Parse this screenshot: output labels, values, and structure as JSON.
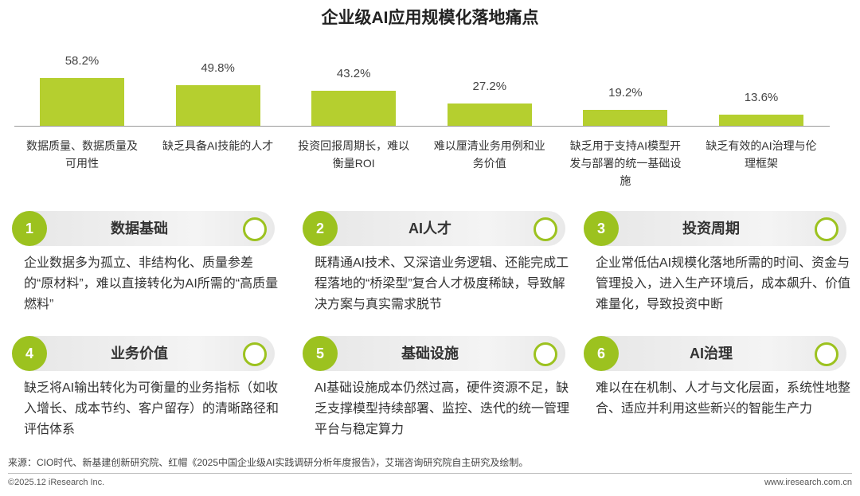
{
  "chart_data": {
    "type": "bar",
    "title": "企业级AI应用规模化落地痛点",
    "categories": [
      "数据质量、数据质量及可用性",
      "缺乏具备AI技能的人才",
      "投资回报周期长，难以衡量ROI",
      "难以厘清业务用例和业务价值",
      "缺乏用于支持AI模型开发与部署的统一基础设施",
      "缺乏有效的AI治理与伦理框架"
    ],
    "values": [
      58.2,
      49.8,
      43.2,
      27.2,
      19.2,
      13.6
    ],
    "value_labels": [
      "58.2%",
      "49.8%",
      "43.2%",
      "27.2%",
      "19.2%",
      "13.6%"
    ],
    "color": "#b5cf2f"
  },
  "cards": [
    {
      "number": 1,
      "title": "数据基础",
      "text": "企业数据多为孤立、非结构化、质量参差的“原材料”，难以直接转化为AI所需的“高质量燃料”"
    },
    {
      "number": 2,
      "title": "AI人才",
      "text": "既精通AI技术、又深谙业务逻辑、还能完成工程落地的“桥梁型”复合人才极度稀缺，导致解决方案与真实需求脱节"
    },
    {
      "number": 3,
      "title": "投资周期",
      "text": "企业常低估AI规模化落地所需的时间、资金与管理投入，进入生产环境后，成本飙升、价值难量化，导致投资中断"
    },
    {
      "number": 4,
      "title": "业务价值",
      "text": "缺乏将AI输出转化为可衡量的业务指标（如收入增长、成本节约、客户留存）的清晰路径和评估体系"
    },
    {
      "number": 5,
      "title": "基础设施",
      "text": "AI基础设施成本仍然过高，硬件资源不足，缺乏支撑模型持续部署、监控、迭代的统一管理平台与稳定算力"
    },
    {
      "number": 6,
      "title": "AI治理",
      "text": "难以在在机制、人才与文化层面，系统性地整合、适应并利用这些新兴的智能生产力"
    }
  ],
  "source": "来源：CIO时代、新基建创新研究院、红帽《2025中国企业级AI实践调研分析年度报告》，艾瑞咨询研究院自主研究及绘制。",
  "footer": {
    "left": "©2025.12 iResearch Inc.",
    "right": "www.iresearch.com.cn"
  }
}
